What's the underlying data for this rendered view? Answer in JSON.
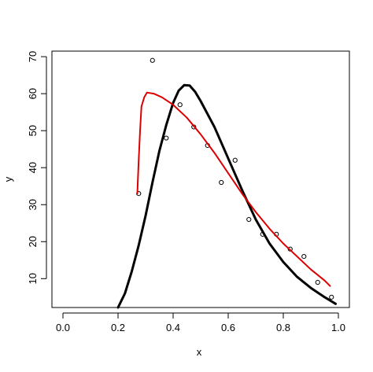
{
  "chart_data": {
    "type": "scatter",
    "xlabel": "x",
    "ylabel": "y",
    "xlim": [
      -0.04,
      1.04
    ],
    "ylim": [
      2.2,
      71.5
    ],
    "x_ticks": [
      0.0,
      0.2,
      0.4,
      0.6,
      0.8,
      1.0
    ],
    "x_tick_labels": [
      "0.0",
      "0.2",
      "0.4",
      "0.6",
      "0.8",
      "1.0"
    ],
    "y_ticks": [
      10,
      20,
      30,
      40,
      50,
      60,
      70
    ],
    "y_tick_labels": [
      "10",
      "20",
      "30",
      "40",
      "50",
      "60",
      "70"
    ],
    "grid": false,
    "series": [
      {
        "kind": "points",
        "marker": "open-circle",
        "color": "#000000",
        "points": [
          [
            0.275,
            33
          ],
          [
            0.325,
            69
          ],
          [
            0.375,
            48
          ],
          [
            0.425,
            57
          ],
          [
            0.475,
            51
          ],
          [
            0.525,
            46
          ],
          [
            0.575,
            36
          ],
          [
            0.625,
            42
          ],
          [
            0.675,
            26
          ],
          [
            0.725,
            22
          ],
          [
            0.775,
            22
          ],
          [
            0.825,
            18
          ],
          [
            0.875,
            16
          ],
          [
            0.925,
            9
          ],
          [
            0.975,
            5
          ]
        ]
      },
      {
        "kind": "line",
        "color": "#000000",
        "width": 3,
        "points": [
          [
            0.2,
            2.2
          ],
          [
            0.225,
            6
          ],
          [
            0.25,
            12
          ],
          [
            0.275,
            19
          ],
          [
            0.3,
            27
          ],
          [
            0.325,
            36
          ],
          [
            0.35,
            44.5
          ],
          [
            0.375,
            51.5
          ],
          [
            0.4,
            57.5
          ],
          [
            0.42,
            60.8
          ],
          [
            0.44,
            62.3
          ],
          [
            0.46,
            62.2
          ],
          [
            0.48,
            60.5
          ],
          [
            0.5,
            58
          ],
          [
            0.55,
            51
          ],
          [
            0.6,
            42.5
          ],
          [
            0.65,
            34
          ],
          [
            0.7,
            26
          ],
          [
            0.75,
            19.5
          ],
          [
            0.8,
            14.5
          ],
          [
            0.85,
            10.5
          ],
          [
            0.9,
            7.5
          ],
          [
            0.95,
            5
          ],
          [
            0.99,
            3.2
          ]
        ]
      },
      {
        "kind": "line",
        "color": "#dd0000",
        "width": 2,
        "points": [
          [
            0.27,
            33
          ],
          [
            0.275,
            42
          ],
          [
            0.28,
            50
          ],
          [
            0.285,
            56.5
          ],
          [
            0.295,
            59
          ],
          [
            0.305,
            60.3
          ],
          [
            0.33,
            60
          ],
          [
            0.36,
            59
          ],
          [
            0.4,
            57
          ],
          [
            0.45,
            53.5
          ],
          [
            0.5,
            49
          ],
          [
            0.55,
            44
          ],
          [
            0.6,
            38.5
          ],
          [
            0.65,
            33
          ],
          [
            0.7,
            28
          ],
          [
            0.75,
            23.5
          ],
          [
            0.8,
            19.5
          ],
          [
            0.85,
            16
          ],
          [
            0.9,
            12.5
          ],
          [
            0.95,
            9.5
          ],
          [
            0.97,
            8
          ]
        ]
      }
    ]
  }
}
